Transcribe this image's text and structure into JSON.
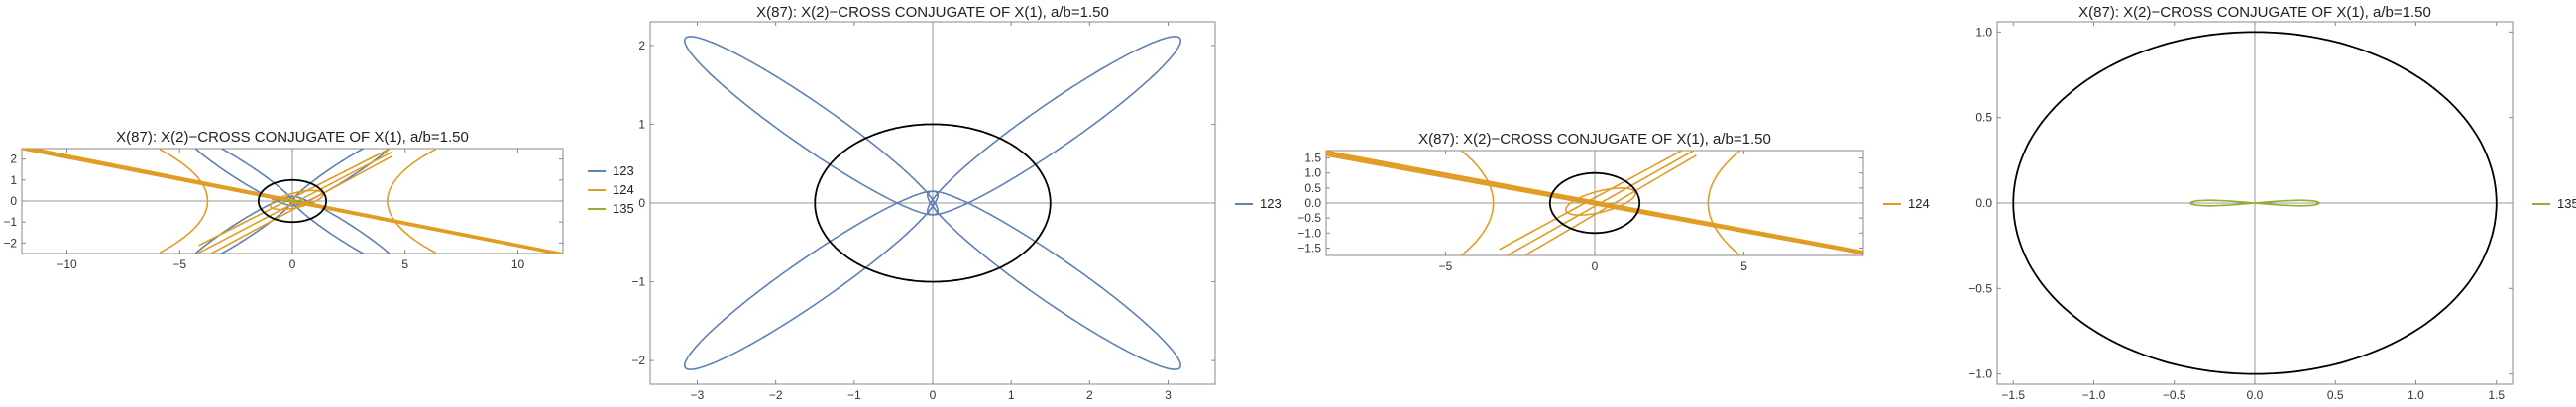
{
  "chart_data": [
    {
      "type": "line",
      "title": "X(87): X(2)−CROSS CONJUGATE OF X(1), a/b=1.50",
      "xlim": [
        -12,
        12
      ],
      "ylim": [
        -2.5,
        2.5
      ],
      "x_ticks": [
        "−10",
        "−5",
        "0",
        "5",
        "10"
      ],
      "y_ticks": [
        "−2",
        "−1",
        "0",
        "1",
        "2"
      ],
      "x_tick_values": [
        -10,
        -5,
        0,
        5,
        10
      ],
      "y_tick_values": [
        -2,
        -1,
        0,
        1,
        2
      ],
      "legend_position": "right",
      "ellipse": {
        "a": 1.5,
        "b": 1.0,
        "color": "#000000"
      },
      "series": [
        {
          "name": "123",
          "color": "#5E81B5"
        },
        {
          "name": "124",
          "color": "#E19C24"
        },
        {
          "name": "135",
          "color": "#8FB032"
        }
      ]
    },
    {
      "type": "line",
      "title": "X(87): X(2)−CROSS CONJUGATE OF X(1), a/b=1.50",
      "xlim": [
        -3.6,
        3.6
      ],
      "ylim": [
        -2.3,
        2.3
      ],
      "x_ticks": [
        "−3",
        "−2",
        "−1",
        "0",
        "1",
        "2",
        "3"
      ],
      "y_ticks": [
        "−2",
        "−1",
        "0",
        "1",
        "2"
      ],
      "x_tick_values": [
        -3,
        -2,
        -1,
        0,
        1,
        2,
        3
      ],
      "y_tick_values": [
        -2,
        -1,
        0,
        1,
        2
      ],
      "legend_position": "right",
      "ellipse": {
        "a": 1.5,
        "b": 1.0,
        "color": "#000000"
      },
      "series": [
        {
          "name": "123",
          "color": "#5E81B5"
        }
      ]
    },
    {
      "type": "line",
      "title": "X(87): X(2)−CROSS CONJUGATE OF X(1), a/b=1.50",
      "xlim": [
        -9,
        9
      ],
      "ylim": [
        -1.75,
        1.75
      ],
      "x_ticks": [
        "−5",
        "0",
        "5"
      ],
      "y_ticks": [
        "−1.5",
        "−1.0",
        "−0.5",
        "0.0",
        "0.5",
        "1.0",
        "1.5"
      ],
      "x_tick_values": [
        -5,
        0,
        5
      ],
      "y_tick_values": [
        -1.5,
        -1.0,
        -0.5,
        0.0,
        0.5,
        1.0,
        1.5
      ],
      "legend_position": "right",
      "ellipse": {
        "a": 1.5,
        "b": 1.0,
        "color": "#000000"
      },
      "series": [
        {
          "name": "124",
          "color": "#E19C24"
        }
      ]
    },
    {
      "type": "line",
      "title": "X(87): X(2)−CROSS CONJUGATE OF X(1), a/b=1.50",
      "xlim": [
        -1.6,
        1.6
      ],
      "ylim": [
        -1.06,
        1.06
      ],
      "x_ticks": [
        "−1.5",
        "−1.0",
        "−0.5",
        "0.0",
        "0.5",
        "1.0",
        "1.5"
      ],
      "y_ticks": [
        "−1.0",
        "−0.5",
        "0.0",
        "0.5",
        "1.0"
      ],
      "x_tick_values": [
        -1.5,
        -1.0,
        -0.5,
        0.0,
        0.5,
        1.0,
        1.5
      ],
      "y_tick_values": [
        -1.0,
        -0.5,
        0.0,
        0.5,
        1.0
      ],
      "legend_position": "right",
      "ellipse": {
        "a": 1.5,
        "b": 1.0,
        "color": "#000000"
      },
      "series": [
        {
          "name": "135",
          "color": "#8FB032"
        }
      ]
    }
  ]
}
